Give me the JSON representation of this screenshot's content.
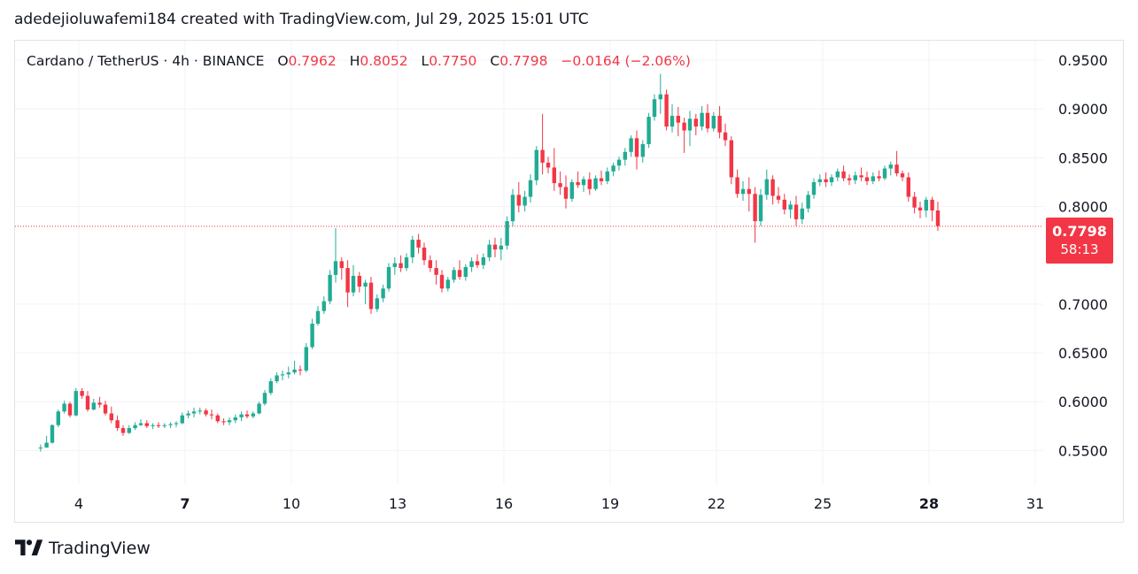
{
  "header": {
    "text": "adedejioluwafemi184 created with TradingView.com, Jul 29, 2025 15:01 UTC"
  },
  "legend": {
    "symbol": "Cardano / TetherUS · 4h · BINANCE",
    "open_label": "O",
    "open": "0.7962",
    "high_label": "H",
    "high": "0.8052",
    "low_label": "L",
    "low": "0.7750",
    "close_label": "C",
    "close": "0.7798",
    "change": "−0.0164 (−2.06%)"
  },
  "price_badge": {
    "price": "0.7798",
    "countdown": "58:13"
  },
  "footer": {
    "brand": "TradingView"
  },
  "colors": {
    "up": "#22ab94",
    "down": "#f23645",
    "grid": "#f0f3fa"
  },
  "chart_data": {
    "type": "candlestick",
    "ylim": [
      0.515,
      0.97
    ],
    "y_ticks": [
      "0.9500",
      "0.9000",
      "0.8500",
      "0.8000",
      "0.7000",
      "0.6500",
      "0.6000",
      "0.5500"
    ],
    "x_ticks": [
      {
        "label": "4",
        "day": 4,
        "bold": false
      },
      {
        "label": "7",
        "day": 7,
        "bold": true
      },
      {
        "label": "10",
        "day": 10,
        "bold": false
      },
      {
        "label": "13",
        "day": 13,
        "bold": false
      },
      {
        "label": "16",
        "day": 16,
        "bold": false
      },
      {
        "label": "19",
        "day": 19,
        "bold": false
      },
      {
        "label": "22",
        "day": 22,
        "bold": false
      },
      {
        "label": "25",
        "day": 25,
        "bold": false
      },
      {
        "label": "28",
        "day": 28,
        "bold": true
      },
      {
        "label": "31",
        "day": 31,
        "bold": false
      }
    ],
    "current_price": 0.7798,
    "candles": [
      [
        2.92,
        0.553,
        0.556,
        0.549,
        0.553
      ],
      [
        3.09,
        0.553,
        0.565,
        0.553,
        0.558
      ],
      [
        3.25,
        0.558,
        0.577,
        0.557,
        0.576
      ],
      [
        3.42,
        0.576,
        0.592,
        0.574,
        0.59
      ],
      [
        3.59,
        0.59,
        0.601,
        0.588,
        0.598
      ],
      [
        3.75,
        0.598,
        0.6,
        0.584,
        0.586
      ],
      [
        3.92,
        0.586,
        0.614,
        0.585,
        0.611
      ],
      [
        4.09,
        0.611,
        0.614,
        0.603,
        0.606
      ],
      [
        4.25,
        0.606,
        0.611,
        0.59,
        0.592
      ],
      [
        4.42,
        0.592,
        0.603,
        0.591,
        0.599
      ],
      [
        4.59,
        0.599,
        0.605,
        0.594,
        0.597
      ],
      [
        4.75,
        0.597,
        0.601,
        0.586,
        0.588
      ],
      [
        4.92,
        0.588,
        0.595,
        0.578,
        0.581
      ],
      [
        5.09,
        0.581,
        0.586,
        0.57,
        0.573
      ],
      [
        5.25,
        0.573,
        0.576,
        0.565,
        0.568
      ],
      [
        5.42,
        0.568,
        0.576,
        0.567,
        0.573
      ],
      [
        5.59,
        0.573,
        0.579,
        0.571,
        0.576
      ],
      [
        5.75,
        0.576,
        0.582,
        0.575,
        0.578
      ],
      [
        5.92,
        0.578,
        0.581,
        0.573,
        0.575
      ],
      [
        6.09,
        0.575,
        0.578,
        0.572,
        0.576
      ],
      [
        6.25,
        0.576,
        0.579,
        0.573,
        0.575
      ],
      [
        6.42,
        0.575,
        0.578,
        0.573,
        0.576
      ],
      [
        6.59,
        0.576,
        0.579,
        0.573,
        0.577
      ],
      [
        6.75,
        0.577,
        0.58,
        0.574,
        0.578
      ],
      [
        6.92,
        0.578,
        0.589,
        0.577,
        0.586
      ],
      [
        7.09,
        0.586,
        0.591,
        0.583,
        0.588
      ],
      [
        7.25,
        0.588,
        0.594,
        0.584,
        0.59
      ],
      [
        7.42,
        0.59,
        0.594,
        0.587,
        0.591
      ],
      [
        7.59,
        0.591,
        0.593,
        0.585,
        0.587
      ],
      [
        7.75,
        0.587,
        0.592,
        0.582,
        0.586
      ],
      [
        7.92,
        0.586,
        0.588,
        0.578,
        0.58
      ],
      [
        8.09,
        0.58,
        0.583,
        0.576,
        0.579
      ],
      [
        8.25,
        0.579,
        0.584,
        0.576,
        0.581
      ],
      [
        8.42,
        0.581,
        0.587,
        0.578,
        0.584
      ],
      [
        8.59,
        0.584,
        0.59,
        0.58,
        0.587
      ],
      [
        8.75,
        0.587,
        0.591,
        0.583,
        0.585
      ],
      [
        8.92,
        0.585,
        0.59,
        0.583,
        0.588
      ],
      [
        9.09,
        0.588,
        0.6,
        0.587,
        0.598
      ],
      [
        9.25,
        0.598,
        0.612,
        0.596,
        0.609
      ],
      [
        9.42,
        0.609,
        0.624,
        0.607,
        0.621
      ],
      [
        9.59,
        0.621,
        0.63,
        0.619,
        0.627
      ],
      [
        9.75,
        0.627,
        0.632,
        0.622,
        0.628
      ],
      [
        9.92,
        0.628,
        0.636,
        0.624,
        0.63
      ],
      [
        10.09,
        0.63,
        0.642,
        0.628,
        0.633
      ],
      [
        10.25,
        0.633,
        0.637,
        0.627,
        0.632
      ],
      [
        10.42,
        0.632,
        0.66,
        0.63,
        0.656
      ],
      [
        10.59,
        0.656,
        0.685,
        0.654,
        0.68
      ],
      [
        10.75,
        0.68,
        0.698,
        0.678,
        0.693
      ],
      [
        10.92,
        0.693,
        0.708,
        0.69,
        0.703
      ],
      [
        11.09,
        0.703,
        0.735,
        0.7,
        0.73
      ],
      [
        11.25,
        0.73,
        0.778,
        0.722,
        0.744
      ],
      [
        11.42,
        0.744,
        0.748,
        0.725,
        0.737
      ],
      [
        11.59,
        0.737,
        0.745,
        0.697,
        0.712
      ],
      [
        11.75,
        0.712,
        0.74,
        0.708,
        0.729
      ],
      [
        11.92,
        0.729,
        0.733,
        0.712,
        0.718
      ],
      [
        12.09,
        0.718,
        0.725,
        0.7,
        0.722
      ],
      [
        12.25,
        0.722,
        0.728,
        0.69,
        0.695
      ],
      [
        12.42,
        0.695,
        0.71,
        0.692,
        0.706
      ],
      [
        12.59,
        0.706,
        0.72,
        0.702,
        0.716
      ],
      [
        12.75,
        0.716,
        0.742,
        0.713,
        0.738
      ],
      [
        12.92,
        0.738,
        0.748,
        0.73,
        0.742
      ],
      [
        13.09,
        0.742,
        0.75,
        0.733,
        0.737
      ],
      [
        13.25,
        0.737,
        0.752,
        0.734,
        0.748
      ],
      [
        13.42,
        0.748,
        0.77,
        0.742,
        0.766
      ],
      [
        13.59,
        0.766,
        0.772,
        0.752,
        0.758
      ],
      [
        13.75,
        0.758,
        0.763,
        0.74,
        0.745
      ],
      [
        13.92,
        0.745,
        0.75,
        0.733,
        0.737
      ],
      [
        14.09,
        0.737,
        0.745,
        0.72,
        0.73
      ],
      [
        14.25,
        0.73,
        0.735,
        0.712,
        0.716
      ],
      [
        14.42,
        0.716,
        0.728,
        0.713,
        0.725
      ],
      [
        14.59,
        0.725,
        0.738,
        0.722,
        0.735
      ],
      [
        14.75,
        0.735,
        0.745,
        0.725,
        0.728
      ],
      [
        14.92,
        0.728,
        0.741,
        0.724,
        0.738
      ],
      [
        15.09,
        0.738,
        0.748,
        0.733,
        0.744
      ],
      [
        15.25,
        0.744,
        0.751,
        0.737,
        0.74
      ],
      [
        15.42,
        0.74,
        0.752,
        0.736,
        0.748
      ],
      [
        15.59,
        0.748,
        0.766,
        0.744,
        0.761
      ],
      [
        15.75,
        0.761,
        0.768,
        0.748,
        0.756
      ],
      [
        15.92,
        0.756,
        0.768,
        0.745,
        0.76
      ],
      [
        16.09,
        0.76,
        0.79,
        0.756,
        0.785
      ],
      [
        16.25,
        0.785,
        0.818,
        0.78,
        0.812
      ],
      [
        16.42,
        0.812,
        0.825,
        0.794,
        0.801
      ],
      [
        16.59,
        0.801,
        0.816,
        0.795,
        0.81
      ],
      [
        16.75,
        0.81,
        0.833,
        0.804,
        0.827
      ],
      [
        16.92,
        0.827,
        0.862,
        0.822,
        0.858
      ],
      [
        17.09,
        0.858,
        0.895,
        0.833,
        0.845
      ],
      [
        17.25,
        0.845,
        0.851,
        0.834,
        0.84
      ],
      [
        17.42,
        0.84,
        0.86,
        0.816,
        0.824
      ],
      [
        17.59,
        0.824,
        0.836,
        0.812,
        0.82
      ],
      [
        17.75,
        0.82,
        0.832,
        0.798,
        0.808
      ],
      [
        17.92,
        0.808,
        0.828,
        0.805,
        0.825
      ],
      [
        18.09,
        0.825,
        0.836,
        0.819,
        0.822
      ],
      [
        18.25,
        0.822,
        0.831,
        0.815,
        0.828
      ],
      [
        18.42,
        0.828,
        0.835,
        0.812,
        0.818
      ],
      [
        18.59,
        0.818,
        0.832,
        0.816,
        0.829
      ],
      [
        18.75,
        0.829,
        0.837,
        0.822,
        0.826
      ],
      [
        18.92,
        0.826,
        0.84,
        0.823,
        0.836
      ],
      [
        19.09,
        0.836,
        0.845,
        0.831,
        0.842
      ],
      [
        19.25,
        0.842,
        0.851,
        0.837,
        0.848
      ],
      [
        19.42,
        0.848,
        0.86,
        0.842,
        0.856
      ],
      [
        19.59,
        0.856,
        0.873,
        0.851,
        0.87
      ],
      [
        19.75,
        0.87,
        0.878,
        0.838,
        0.851
      ],
      [
        19.92,
        0.851,
        0.868,
        0.845,
        0.864
      ],
      [
        20.09,
        0.864,
        0.896,
        0.86,
        0.892
      ],
      [
        20.25,
        0.892,
        0.915,
        0.888,
        0.91
      ],
      [
        20.42,
        0.91,
        0.936,
        0.895,
        0.915
      ],
      [
        20.59,
        0.915,
        0.92,
        0.878,
        0.882
      ],
      [
        20.75,
        0.882,
        0.905,
        0.876,
        0.893
      ],
      [
        20.92,
        0.893,
        0.902,
        0.872,
        0.886
      ],
      [
        21.09,
        0.886,
        0.891,
        0.855,
        0.878
      ],
      [
        21.25,
        0.878,
        0.898,
        0.862,
        0.89
      ],
      [
        21.42,
        0.89,
        0.895,
        0.873,
        0.882
      ],
      [
        21.59,
        0.882,
        0.903,
        0.878,
        0.896
      ],
      [
        21.75,
        0.896,
        0.905,
        0.876,
        0.88
      ],
      [
        21.92,
        0.88,
        0.897,
        0.877,
        0.893
      ],
      [
        22.09,
        0.893,
        0.903,
        0.87,
        0.876
      ],
      [
        22.25,
        0.876,
        0.885,
        0.862,
        0.868
      ],
      [
        22.42,
        0.868,
        0.872,
        0.823,
        0.83
      ],
      [
        22.59,
        0.83,
        0.838,
        0.809,
        0.813
      ],
      [
        22.75,
        0.813,
        0.826,
        0.806,
        0.818
      ],
      [
        22.92,
        0.818,
        0.83,
        0.795,
        0.813
      ],
      [
        23.09,
        0.813,
        0.82,
        0.763,
        0.785
      ],
      [
        23.25,
        0.785,
        0.818,
        0.78,
        0.812
      ],
      [
        23.42,
        0.812,
        0.838,
        0.807,
        0.828
      ],
      [
        23.59,
        0.828,
        0.832,
        0.802,
        0.811
      ],
      [
        23.75,
        0.811,
        0.82,
        0.803,
        0.807
      ],
      [
        23.92,
        0.807,
        0.813,
        0.792,
        0.797
      ],
      [
        24.09,
        0.797,
        0.806,
        0.788,
        0.802
      ],
      [
        24.25,
        0.802,
        0.811,
        0.78,
        0.787
      ],
      [
        24.42,
        0.787,
        0.804,
        0.782,
        0.798
      ],
      [
        24.59,
        0.798,
        0.816,
        0.794,
        0.812
      ],
      [
        24.75,
        0.812,
        0.829,
        0.808,
        0.825
      ],
      [
        24.92,
        0.825,
        0.833,
        0.821,
        0.828
      ],
      [
        25.09,
        0.828,
        0.835,
        0.82,
        0.825
      ],
      [
        25.25,
        0.825,
        0.833,
        0.821,
        0.83
      ],
      [
        25.42,
        0.83,
        0.839,
        0.826,
        0.836
      ],
      [
        25.59,
        0.836,
        0.842,
        0.826,
        0.829
      ],
      [
        25.75,
        0.829,
        0.833,
        0.822,
        0.827
      ],
      [
        25.92,
        0.827,
        0.836,
        0.823,
        0.832
      ],
      [
        26.09,
        0.832,
        0.84,
        0.826,
        0.83
      ],
      [
        26.25,
        0.83,
        0.836,
        0.822,
        0.826
      ],
      [
        26.42,
        0.826,
        0.835,
        0.823,
        0.831
      ],
      [
        26.59,
        0.831,
        0.837,
        0.826,
        0.829
      ],
      [
        26.75,
        0.829,
        0.842,
        0.827,
        0.839
      ],
      [
        26.92,
        0.839,
        0.846,
        0.832,
        0.843
      ],
      [
        27.09,
        0.843,
        0.857,
        0.831,
        0.834
      ],
      [
        27.25,
        0.834,
        0.837,
        0.826,
        0.83
      ],
      [
        27.42,
        0.83,
        0.835,
        0.805,
        0.81
      ],
      [
        27.59,
        0.81,
        0.815,
        0.793,
        0.799
      ],
      [
        27.75,
        0.799,
        0.805,
        0.788,
        0.796
      ],
      [
        27.92,
        0.796,
        0.81,
        0.789,
        0.807
      ],
      [
        28.09,
        0.807,
        0.81,
        0.785,
        0.796
      ],
      [
        28.25,
        0.796,
        0.805,
        0.775,
        0.78
      ]
    ]
  }
}
